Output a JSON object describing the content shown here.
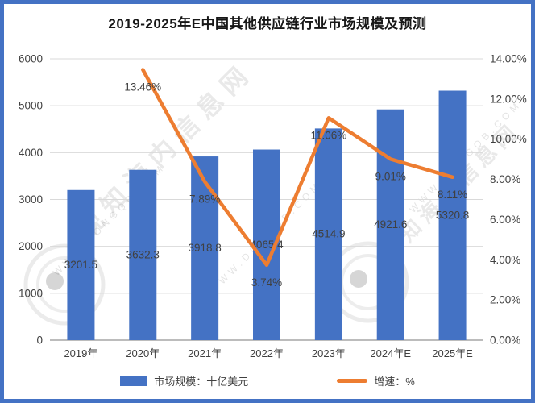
{
  "frame": {
    "border_color": "#4472C4",
    "background": "#FFFFFF"
  },
  "title": "2019-2025年E中国其他供应链行业市场规模及预测",
  "chart_data": {
    "type": "bar+line combo",
    "categories": [
      "2019年",
      "2020年",
      "2021年",
      "2022年",
      "2023年",
      "2024年E",
      "2025年E"
    ],
    "series": [
      {
        "name": "市场规模：十亿美元",
        "type": "bar",
        "axis": "left",
        "color": "#4472C4",
        "values": [
          3201.5,
          3632.3,
          3918.8,
          4065.4,
          4514.9,
          4921.6,
          5320.8
        ],
        "labels": [
          "3201.5",
          "3632.3",
          "3918.8",
          "4065.4",
          "4514.9",
          "4921.6",
          "5320.8"
        ]
      },
      {
        "name": "增速：%",
        "type": "line",
        "axis": "right",
        "color": "#ED7D31",
        "values": [
          null,
          13.46,
          7.89,
          3.74,
          11.06,
          9.01,
          8.11
        ],
        "labels": [
          "",
          "13.46%",
          "7.89%",
          "3.74%",
          "11.06%",
          "9.01%",
          "8.11%"
        ]
      }
    ],
    "left_axis": {
      "min": 0,
      "max": 6000,
      "step": 1000,
      "ticks": [
        "0",
        "1000",
        "2000",
        "3000",
        "4000",
        "5000",
        "6000"
      ]
    },
    "right_axis": {
      "min": 0,
      "max": 14,
      "step": 2,
      "ticks": [
        "0.00%",
        "2.00%",
        "4.00%",
        "6.00%",
        "8.00%",
        "10.00%",
        "12.00%",
        "14.00%"
      ]
    },
    "grid": true,
    "legend_position": "bottom",
    "tick_color": "#404040",
    "gridline_color": "#D9D9D9",
    "axisline_color": "#A6A6A6"
  },
  "legend": {
    "items": [
      {
        "label": "市场规模：十亿美元",
        "color": "#4472C4",
        "shape": "rect"
      },
      {
        "label": "增速：%",
        "color": "#ED7D31",
        "shape": "line"
      }
    ]
  },
  "watermark": {
    "brand": "观知海内信息网",
    "url": "WWW.DONGQB.COM"
  }
}
